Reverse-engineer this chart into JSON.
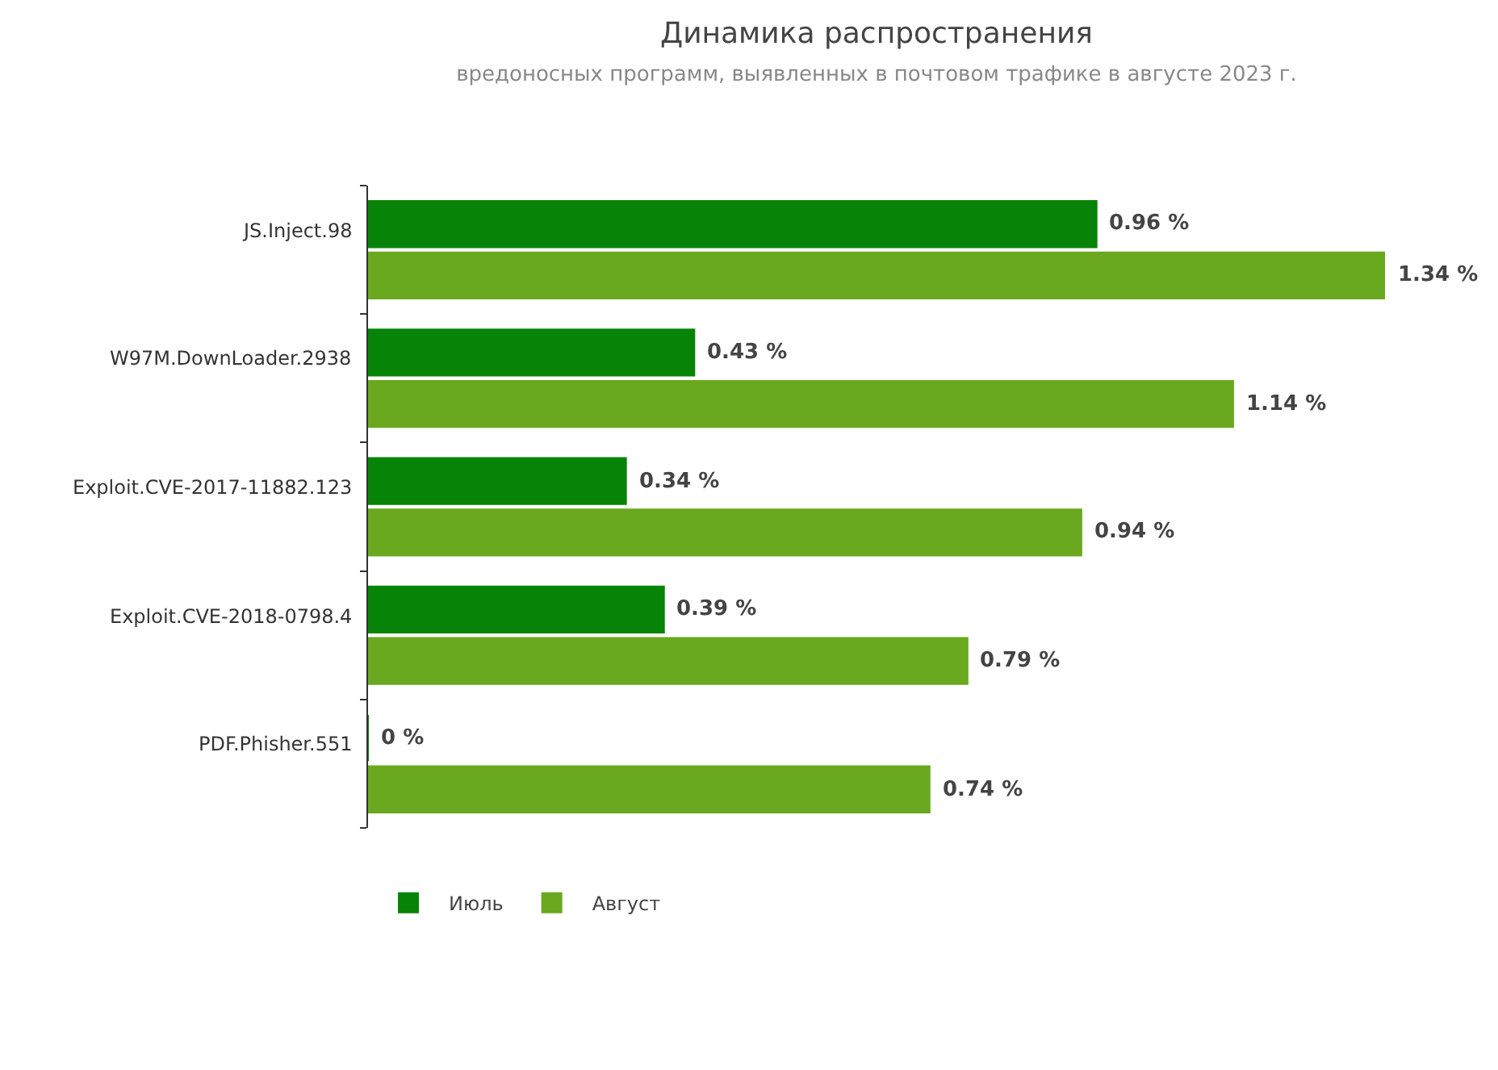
{
  "chart_data": {
    "type": "bar",
    "orientation": "horizontal",
    "title": "Динамика распространения",
    "subtitle": "вредоносных программ, выявленных в почтовом трафике в августе 2023 г.",
    "categories": [
      "JS.Inject.98",
      "W97M.DownLoader.2938",
      "Exploit.CVE-2017-11882.123",
      "Exploit.CVE-2018-0798.4",
      "PDF.Phisher.551"
    ],
    "series": [
      {
        "name": "Июль",
        "color": "#078407",
        "values": [
          0.96,
          0.43,
          0.34,
          0.39,
          0
        ],
        "value_labels": [
          "0.96 %",
          "0.43 %",
          "0.34 %",
          "0.39 %",
          "0 %"
        ]
      },
      {
        "name": "Август",
        "color": "#6aa91f",
        "values": [
          1.34,
          1.14,
          0.94,
          0.79,
          0.74
        ],
        "value_labels": [
          "1.34 %",
          "1.14 %",
          "0.94 %",
          "0.79 %",
          "0.74 %"
        ]
      }
    ],
    "grid": false,
    "legend": "bottom left"
  }
}
